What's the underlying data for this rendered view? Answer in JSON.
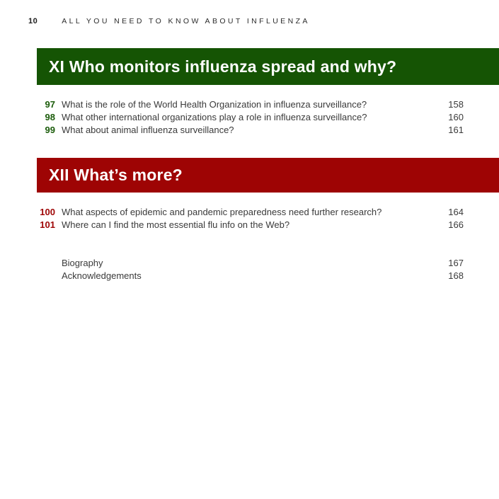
{
  "header": {
    "page_number": "10",
    "book_title": "ALL YOU NEED TO KNOW ABOUT INFLUENZA"
  },
  "colors": {
    "section_green": "#155404",
    "section_red": "#9e0404",
    "body_text": "#3a3a3a",
    "banner_text": "#ffffff"
  },
  "sections": [
    {
      "title": "XI Who monitors influenza spread and why?",
      "accent": "#155404",
      "items": [
        {
          "number": "97",
          "question": "What is the role of the World Health Organization in influenza surveillance?",
          "page": "158"
        },
        {
          "number": "98",
          "question": "What other international organizations play a role in influenza surveillance?",
          "page": "160"
        },
        {
          "number": "99",
          "question": "What about animal influenza surveillance?",
          "page": "161"
        }
      ]
    },
    {
      "title": "XII What’s more?",
      "accent": "#9e0404",
      "items": [
        {
          "number": "100",
          "question": "What aspects of epidemic and pandemic preparedness need further research?",
          "page": "164"
        },
        {
          "number": "101",
          "question": "Where can I find the most essential flu info on the Web?",
          "page": "166"
        }
      ]
    }
  ],
  "back_matter": [
    {
      "label": "Biography",
      "page": "167"
    },
    {
      "label": "Acknowledgements",
      "page": "168"
    }
  ]
}
